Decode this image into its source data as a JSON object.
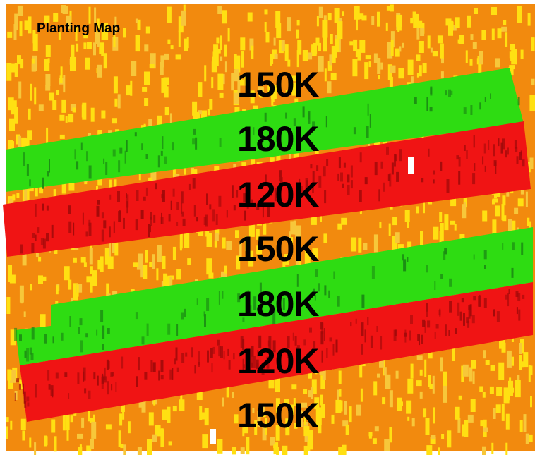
{
  "title": "Planting Map",
  "colors": {
    "background": "#F28A0E",
    "speckle_yellow": "#FFE012",
    "speckle_light": "#F7C73A",
    "green_band": "#2EDC12",
    "green_dark": "#1B8A14",
    "red_band": "#F01414",
    "red_dark": "#A00A0A"
  },
  "rate_bands": [
    {
      "label": "150K",
      "zone": "orange"
    },
    {
      "label": "180K",
      "zone": "green"
    },
    {
      "label": "120K",
      "zone": "red"
    },
    {
      "label": "150K",
      "zone": "orange"
    },
    {
      "label": "180K",
      "zone": "green"
    },
    {
      "label": "120K",
      "zone": "red"
    },
    {
      "label": "150K",
      "zone": "orange"
    }
  ]
}
